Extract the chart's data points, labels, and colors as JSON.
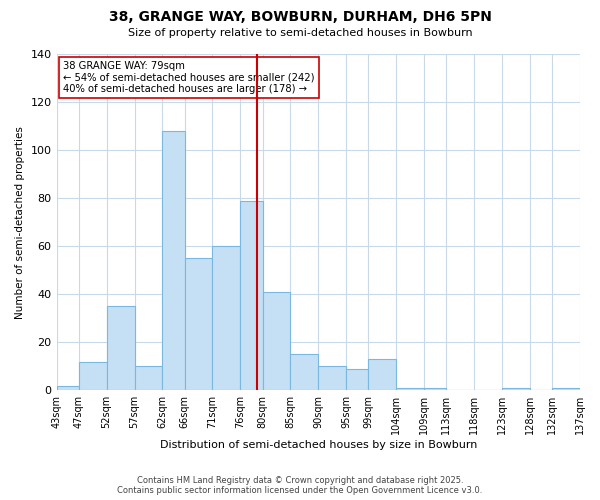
{
  "title": "38, GRANGE WAY, BOWBURN, DURHAM, DH6 5PN",
  "subtitle": "Size of property relative to semi-detached houses in Bowburn",
  "xlabel": "Distribution of semi-detached houses by size in Bowburn",
  "ylabel": "Number of semi-detached properties",
  "footer_line1": "Contains HM Land Registry data © Crown copyright and database right 2025.",
  "footer_line2": "Contains public sector information licensed under the Open Government Licence v3.0.",
  "annotation_title": "38 GRANGE WAY: 79sqm",
  "annotation_line1": "← 54% of semi-detached houses are smaller (242)",
  "annotation_line2": "40% of semi-detached houses are larger (178) →",
  "bin_edges": [
    43,
    47,
    52,
    57,
    62,
    66,
    71,
    76,
    80,
    85,
    90,
    95,
    99,
    104,
    109,
    113,
    118,
    123,
    128,
    132,
    137
  ],
  "bin_labels": [
    "43sqm",
    "47sqm",
    "52sqm",
    "57sqm",
    "62sqm",
    "66sqm",
    "71sqm",
    "76sqm",
    "80sqm",
    "85sqm",
    "90sqm",
    "95sqm",
    "99sqm",
    "104sqm",
    "109sqm",
    "113sqm",
    "118sqm",
    "123sqm",
    "128sqm",
    "132sqm",
    "137sqm"
  ],
  "counts": [
    2,
    12,
    35,
    10,
    108,
    55,
    60,
    79,
    41,
    15,
    10,
    9,
    13,
    1,
    1,
    0,
    0,
    1,
    0,
    1
  ],
  "bar_color": "#c5e0f5",
  "bar_edge_color": "#7ab8e0",
  "vline_color": "#cc0000",
  "vline_x": 79,
  "ylim": [
    0,
    140
  ],
  "yticks": [
    0,
    20,
    40,
    60,
    80,
    100,
    120,
    140
  ],
  "background_color": "#ffffff",
  "grid_color": "#c8daea"
}
